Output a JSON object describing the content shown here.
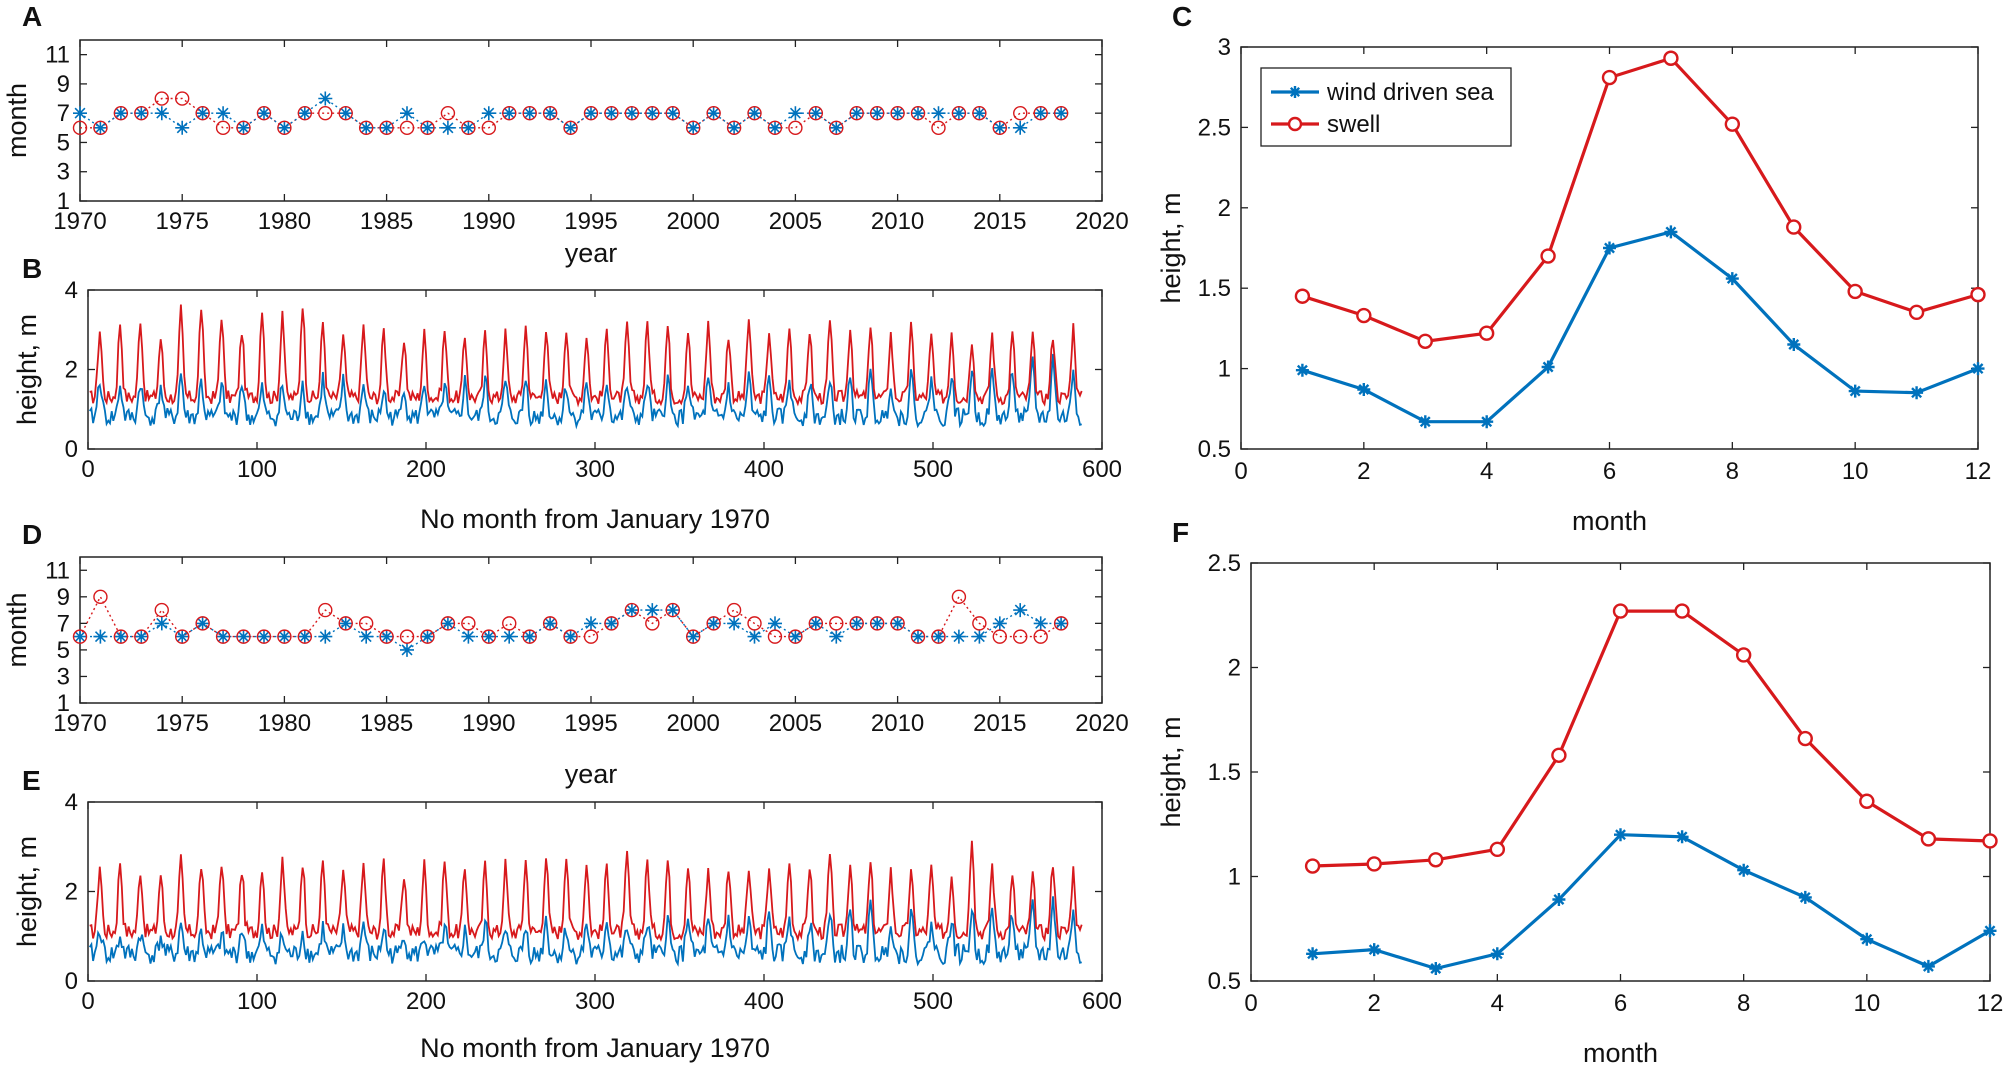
{
  "colors": {
    "wind": "#0072BD",
    "swell": "#D7191C",
    "axis": "#222222"
  },
  "panel_labels": {
    "A": "A",
    "B": "B",
    "C": "C",
    "D": "D",
    "E": "E",
    "F": "F"
  },
  "chart_data": [
    {
      "id": "A",
      "type": "scatter",
      "title": "",
      "xlabel": "year",
      "ylabel": "month",
      "xlim": [
        1970,
        2020
      ],
      "ylim": [
        1,
        12
      ],
      "xticks": [
        1970,
        1975,
        1980,
        1985,
        1990,
        1995,
        2000,
        2005,
        2010,
        2015,
        2020
      ],
      "yticks": [
        1,
        3,
        5,
        7,
        9,
        11
      ],
      "x": [
        1970,
        1971,
        1972,
        1973,
        1974,
        1975,
        1976,
        1977,
        1978,
        1979,
        1980,
        1981,
        1982,
        1983,
        1984,
        1985,
        1986,
        1987,
        1988,
        1989,
        1990,
        1991,
        1992,
        1993,
        1994,
        1995,
        1996,
        1997,
        1998,
        1999,
        2000,
        2001,
        2002,
        2003,
        2004,
        2005,
        2006,
        2007,
        2008,
        2009,
        2010,
        2011,
        2012,
        2013,
        2014,
        2015,
        2016,
        2017,
        2018
      ],
      "series": [
        {
          "name": "wind driven sea",
          "marker": "star",
          "values": [
            7,
            6,
            7,
            7,
            7,
            6,
            7,
            7,
            6,
            7,
            6,
            7,
            8,
            7,
            6,
            6,
            7,
            6,
            6,
            6,
            7,
            7,
            7,
            7,
            6,
            7,
            7,
            7,
            7,
            7,
            6,
            7,
            6,
            7,
            6,
            7,
            7,
            6,
            7,
            7,
            7,
            7,
            7,
            7,
            7,
            6,
            6,
            7,
            7
          ]
        },
        {
          "name": "swell",
          "marker": "circle",
          "values": [
            6,
            6,
            7,
            7,
            8,
            8,
            7,
            6,
            6,
            7,
            6,
            7,
            7,
            7,
            6,
            6,
            6,
            6,
            7,
            6,
            6,
            7,
            7,
            7,
            6,
            7,
            7,
            7,
            7,
            7,
            6,
            7,
            6,
            7,
            6,
            6,
            7,
            6,
            7,
            7,
            7,
            7,
            6,
            7,
            7,
            6,
            7,
            7,
            7
          ]
        }
      ]
    },
    {
      "id": "B",
      "type": "line",
      "title": "",
      "xlabel": "No month from January 1970",
      "ylabel": "height, m",
      "xlim": [
        0,
        600
      ],
      "ylim": [
        0,
        4
      ],
      "xticks": [
        0,
        100,
        200,
        300,
        400,
        500,
        600
      ],
      "yticks": [
        0,
        2,
        4
      ],
      "n_months": 588,
      "series": [
        {
          "name": "wind driven sea",
          "annual_peaks": [
            1.8,
            1.6,
            1.7,
            1.6,
            1.9,
            1.7,
            1.6,
            1.7,
            1.5,
            1.6,
            1.7,
            1.8,
            1.7,
            1.6,
            1.5,
            1.6,
            1.7,
            1.6,
            1.7,
            1.8,
            1.7,
            1.8,
            1.7,
            1.6,
            1.7,
            1.7,
            1.6,
            1.7,
            1.8,
            1.7,
            1.7,
            1.6,
            1.8,
            1.7,
            1.8,
            1.7,
            1.6,
            1.7,
            1.8,
            1.7,
            1.9,
            1.8,
            1.9,
            2.0,
            1.9,
            2.1,
            2.2,
            2.3,
            2.0
          ]
        },
        {
          "name": "swell",
          "annual_peaks": [
            3.0,
            3.2,
            3.3,
            2.8,
            3.5,
            3.6,
            3.4,
            3.0,
            3.6,
            3.5,
            3.7,
            3.2,
            2.9,
            3.1,
            3.0,
            2.8,
            2.9,
            3.0,
            2.8,
            2.9,
            2.9,
            3.1,
            3.0,
            3.1,
            2.9,
            3.0,
            3.1,
            3.2,
            3.1,
            3.0,
            3.2,
            2.9,
            3.3,
            3.0,
            3.1,
            3.0,
            3.2,
            3.1,
            3.0,
            2.9,
            3.1,
            2.8,
            3.0,
            2.8,
            2.9,
            2.9,
            2.8,
            2.9,
            3.1
          ]
        }
      ]
    },
    {
      "id": "C",
      "type": "line",
      "title": "",
      "xlabel": "month",
      "ylabel": "height, m",
      "xlim": [
        0,
        12
      ],
      "ylim": [
        0.5,
        3
      ],
      "xticks": [
        0,
        2,
        4,
        6,
        8,
        10,
        12
      ],
      "yticks": [
        0.5,
        1,
        1.5,
        2,
        2.5,
        3
      ],
      "x": [
        1,
        2,
        3,
        4,
        5,
        6,
        7,
        8,
        9,
        10,
        11,
        12
      ],
      "series": [
        {
          "name": "wind driven sea",
          "marker": "star",
          "values": [
            0.99,
            0.87,
            0.67,
            0.67,
            1.01,
            1.75,
            1.85,
            1.56,
            1.15,
            0.86,
            0.85,
            1.0
          ]
        },
        {
          "name": "swell",
          "marker": "circle",
          "values": [
            1.45,
            1.33,
            1.17,
            1.22,
            1.7,
            2.81,
            2.93,
            2.52,
            1.88,
            1.48,
            1.35,
            1.46
          ]
        }
      ],
      "legend": [
        "wind driven sea",
        "swell"
      ],
      "legend_position": "top-left"
    },
    {
      "id": "D",
      "type": "scatter",
      "title": "",
      "xlabel": "year",
      "ylabel": "month",
      "xlim": [
        1970,
        2020
      ],
      "ylim": [
        1,
        12
      ],
      "xticks": [
        1970,
        1975,
        1980,
        1985,
        1990,
        1995,
        2000,
        2005,
        2010,
        2015,
        2020
      ],
      "yticks": [
        1,
        3,
        5,
        7,
        9,
        11
      ],
      "x": [
        1970,
        1971,
        1972,
        1973,
        1974,
        1975,
        1976,
        1977,
        1978,
        1979,
        1980,
        1981,
        1982,
        1983,
        1984,
        1985,
        1986,
        1987,
        1988,
        1989,
        1990,
        1991,
        1992,
        1993,
        1994,
        1995,
        1996,
        1997,
        1998,
        1999,
        2000,
        2001,
        2002,
        2003,
        2004,
        2005,
        2006,
        2007,
        2008,
        2009,
        2010,
        2011,
        2012,
        2013,
        2014,
        2015,
        2016,
        2017,
        2018
      ],
      "series": [
        {
          "name": "wind driven sea",
          "marker": "star",
          "values": [
            6,
            6,
            6,
            6,
            7,
            6,
            7,
            6,
            6,
            6,
            6,
            6,
            6,
            7,
            6,
            6,
            5,
            6,
            7,
            6,
            6,
            6,
            6,
            7,
            6,
            7,
            7,
            8,
            8,
            8,
            6,
            7,
            7,
            6,
            7,
            6,
            7,
            6,
            7,
            7,
            7,
            6,
            6,
            6,
            6,
            7,
            8,
            7,
            7
          ]
        },
        {
          "name": "swell",
          "marker": "circle",
          "values": [
            6,
            9,
            6,
            6,
            8,
            6,
            7,
            6,
            6,
            6,
            6,
            6,
            8,
            7,
            7,
            6,
            6,
            6,
            7,
            7,
            6,
            7,
            6,
            7,
            6,
            6,
            7,
            8,
            7,
            8,
            6,
            7,
            8,
            7,
            6,
            6,
            7,
            7,
            7,
            7,
            7,
            6,
            6,
            9,
            7,
            6,
            6,
            6,
            7
          ]
        }
      ]
    },
    {
      "id": "E",
      "type": "line",
      "title": "",
      "xlabel": "No month from January 1970",
      "ylabel": "height, m",
      "xlim": [
        0,
        600
      ],
      "ylim": [
        0,
        4
      ],
      "xticks": [
        0,
        100,
        200,
        300,
        400,
        500,
        600
      ],
      "yticks": [
        0,
        2,
        4
      ],
      "n_months": 588,
      "series": [
        {
          "name": "wind driven sea",
          "annual_peaks": [
            1.2,
            1.0,
            1.1,
            1.0,
            1.3,
            1.1,
            1.0,
            1.2,
            1.1,
            1.0,
            1.1,
            1.2,
            1.1,
            1.3,
            1.2,
            1.1,
            1.0,
            1.2,
            1.1,
            1.3,
            1.1,
            1.2,
            1.4,
            1.2,
            1.3,
            1.4,
            1.2,
            1.3,
            1.4,
            1.5,
            1.3,
            1.4,
            1.3,
            1.4,
            1.5,
            1.3,
            1.4,
            1.5,
            1.6,
            1.4,
            1.5,
            1.3,
            1.4,
            1.6,
            1.5,
            1.6,
            1.7,
            1.8,
            1.6
          ]
        },
        {
          "name": "swell",
          "annual_peaks": [
            2.6,
            2.7,
            2.5,
            2.4,
            2.7,
            2.6,
            2.7,
            2.5,
            2.6,
            2.8,
            2.7,
            2.7,
            2.5,
            2.6,
            2.7,
            2.4,
            2.6,
            2.7,
            2.5,
            2.6,
            2.6,
            2.7,
            2.8,
            2.9,
            2.7,
            2.6,
            2.8,
            2.7,
            2.7,
            2.6,
            2.5,
            2.6,
            2.5,
            2.6,
            2.7,
            2.6,
            2.8,
            2.7,
            2.6,
            2.5,
            2.4,
            2.5,
            2.4,
            3.3,
            2.6,
            2.3,
            2.3,
            2.7,
            2.5
          ]
        }
      ]
    },
    {
      "id": "F",
      "type": "line",
      "title": "",
      "xlabel": "month",
      "ylabel": "height, m",
      "xlim": [
        0,
        12
      ],
      "ylim": [
        0.5,
        2.5
      ],
      "xticks": [
        0,
        2,
        4,
        6,
        8,
        10,
        12
      ],
      "yticks": [
        0.5,
        1,
        1.5,
        2,
        2.5
      ],
      "x": [
        1,
        2,
        3,
        4,
        5,
        6,
        7,
        8,
        9,
        10,
        11,
        12
      ],
      "series": [
        {
          "name": "wind driven sea",
          "marker": "star",
          "values": [
            0.63,
            0.65,
            0.56,
            0.63,
            0.89,
            1.2,
            1.19,
            1.03,
            0.9,
            0.7,
            0.57,
            0.74
          ]
        },
        {
          "name": "swell",
          "marker": "circle",
          "values": [
            1.05,
            1.06,
            1.08,
            1.13,
            1.58,
            2.27,
            2.27,
            2.06,
            1.66,
            1.36,
            1.18,
            1.17
          ]
        }
      ]
    }
  ]
}
